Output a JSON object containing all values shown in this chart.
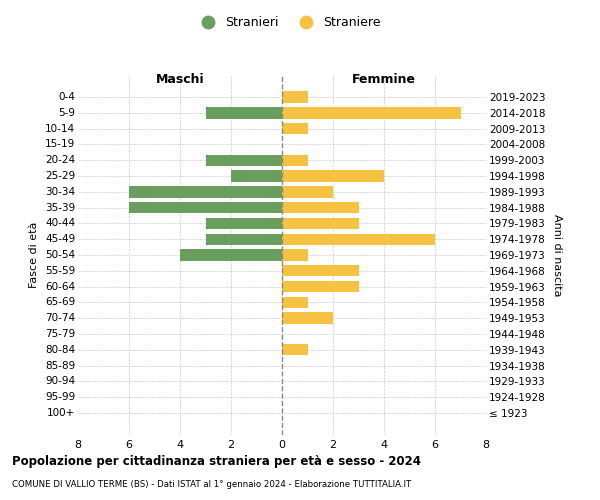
{
  "age_groups": [
    "0-4",
    "5-9",
    "10-14",
    "15-19",
    "20-24",
    "25-29",
    "30-34",
    "35-39",
    "40-44",
    "45-49",
    "50-54",
    "55-59",
    "60-64",
    "65-69",
    "70-74",
    "75-79",
    "80-84",
    "85-89",
    "90-94",
    "95-99",
    "100+"
  ],
  "birth_years": [
    "2019-2023",
    "2014-2018",
    "2009-2013",
    "2004-2008",
    "1999-2003",
    "1994-1998",
    "1989-1993",
    "1984-1988",
    "1979-1983",
    "1974-1978",
    "1969-1973",
    "1964-1968",
    "1959-1963",
    "1954-1958",
    "1949-1953",
    "1944-1948",
    "1939-1943",
    "1934-1938",
    "1929-1933",
    "1924-1928",
    "≤ 1923"
  ],
  "maschi": [
    0,
    3,
    0,
    0,
    3,
    2,
    6,
    6,
    3,
    3,
    4,
    0,
    0,
    0,
    0,
    0,
    0,
    0,
    0,
    0,
    0
  ],
  "femmine": [
    1,
    7,
    1,
    0,
    1,
    4,
    2,
    3,
    3,
    6,
    1,
    3,
    3,
    1,
    2,
    0,
    1,
    0,
    0,
    0,
    0
  ],
  "color_maschi": "#6a9e5f",
  "color_femmine": "#f5c242",
  "color_dashed_line": "#888888",
  "xlabel_left": "Maschi",
  "xlabel_right": "Femmine",
  "ylabel_left": "Fasce di età",
  "ylabel_right": "Anni di nascita",
  "title": "Popolazione per cittadinanza straniera per età e sesso - 2024",
  "subtitle": "COMUNE DI VALLIO TERME (BS) - Dati ISTAT al 1° gennaio 2024 - Elaborazione TUTTITALIA.IT",
  "legend_maschi": "Stranieri",
  "legend_femmine": "Straniere",
  "xlim": 8,
  "bg_color": "#ffffff",
  "grid_color": "#cccccc"
}
